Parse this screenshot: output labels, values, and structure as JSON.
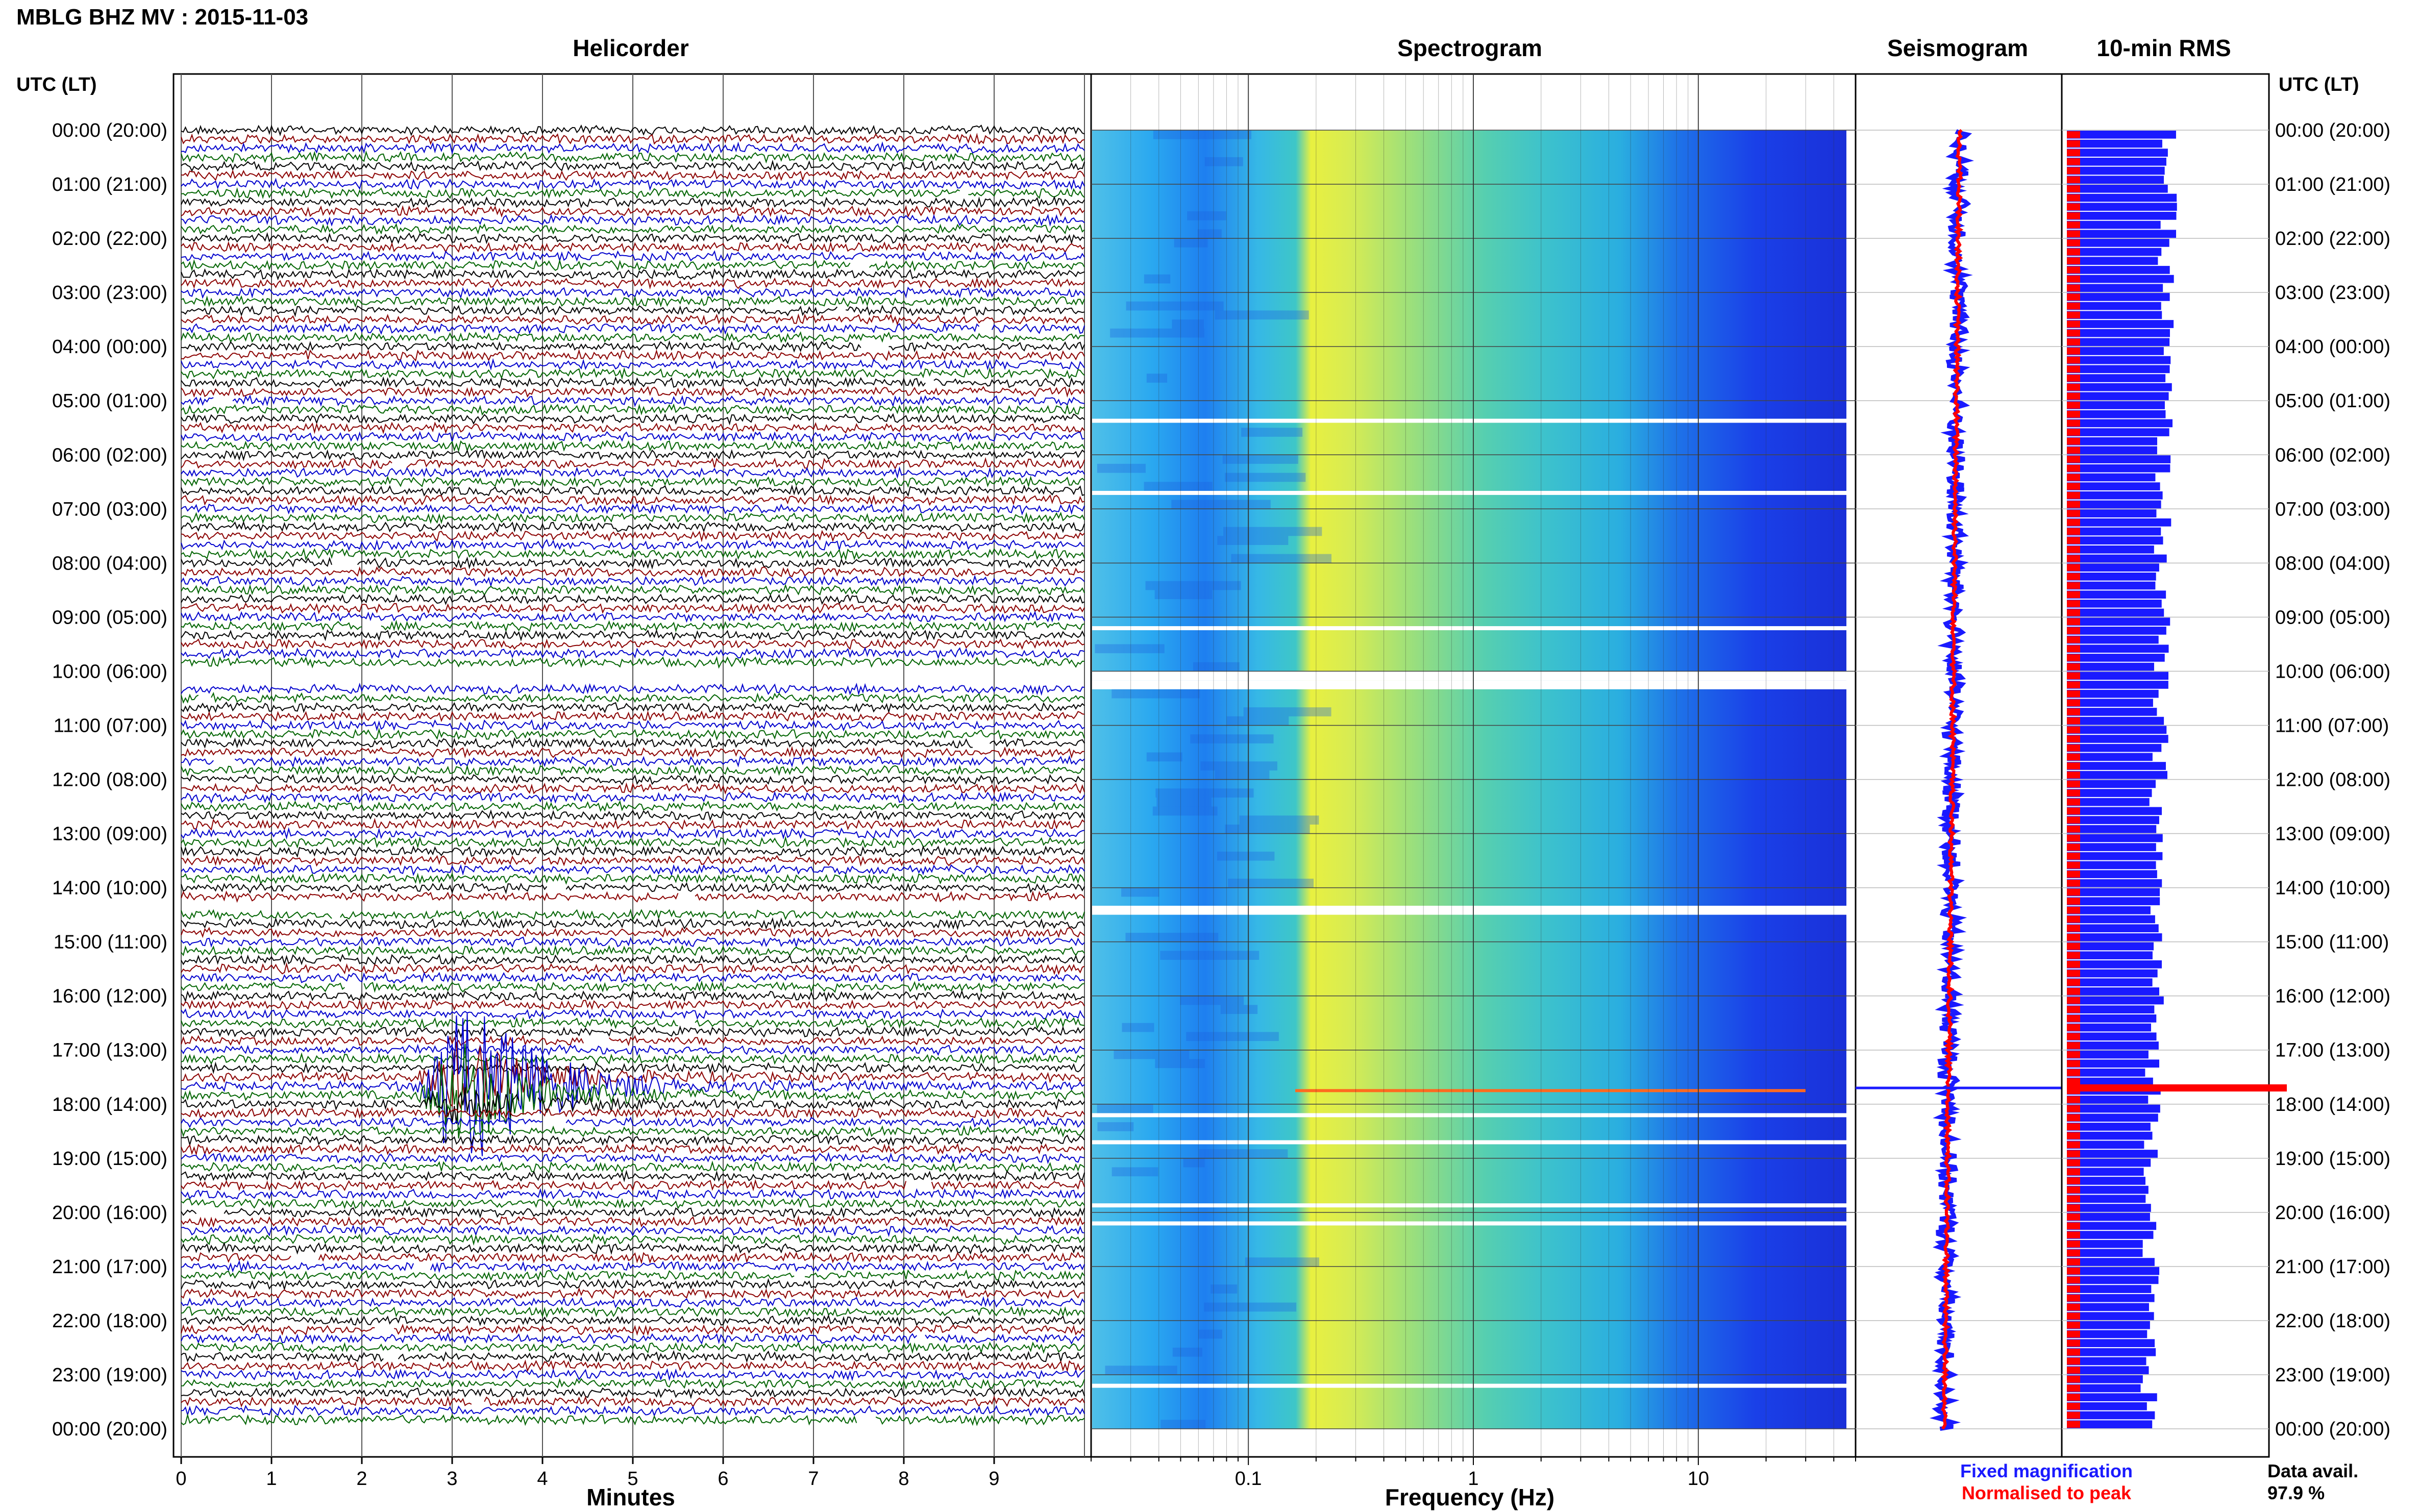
{
  "header": {
    "title": "MBLG BHZ MV : 2015-11-03",
    "utc_label_left": "UTC (LT)",
    "utc_label_right": "UTC (LT)"
  },
  "panels": {
    "helicorder": {
      "title": "Helicorder",
      "xlabel": "Minutes"
    },
    "spectrogram": {
      "title": "Spectrogram",
      "xlabel": "Frequency (Hz)"
    },
    "seismogram": {
      "title": "Seismogram"
    },
    "rms": {
      "title": "10-min RMS"
    }
  },
  "legend": {
    "fixed": "Fixed magnification",
    "normalised": "Normalised to peak",
    "fixed_color": "#1a1aff",
    "normalised_color": "#ff0000"
  },
  "data_availability": {
    "label": "Data avail.",
    "value": "97.9 %"
  },
  "chart_data": {
    "type": "helicorder",
    "time_labels": [
      "00:00 (20:00)",
      "01:00 (21:00)",
      "02:00 (22:00)",
      "03:00 (23:00)",
      "04:00 (00:00)",
      "05:00 (01:00)",
      "06:00 (02:00)",
      "07:00 (03:00)",
      "08:00 (04:00)",
      "09:00 (05:00)",
      "10:00 (06:00)",
      "11:00 (07:00)",
      "12:00 (08:00)",
      "13:00 (09:00)",
      "14:00 (10:00)",
      "15:00 (11:00)",
      "16:00 (12:00)",
      "17:00 (13:00)",
      "18:00 (14:00)",
      "19:00 (15:00)",
      "20:00 (16:00)",
      "21:00 (17:00)",
      "22:00 (18:00)",
      "23:00 (19:00)",
      "00:00 (20:00)"
    ],
    "minutes_ticks": [
      "0",
      "1",
      "2",
      "3",
      "4",
      "5",
      "6",
      "7",
      "8",
      "9"
    ],
    "minutes_range": [
      0,
      10
    ],
    "freq_ticks": [
      {
        "value": 0.1,
        "label": "0.1"
      },
      {
        "value": 1,
        "label": "1"
      },
      {
        "value": 10,
        "label": "10"
      }
    ],
    "freq_range": [
      0.02,
      50
    ],
    "trace_colors": [
      "#000000",
      "#8b0000",
      "#0000cd",
      "#006400"
    ],
    "rows_per_hour": 6,
    "event": {
      "hour": 17.7,
      "start_minute": 2.6,
      "peak_minute": 3.1
    },
    "gaps_hours": [
      10.0,
      14.2
    ],
    "rms_colors": {
      "fixed": "#1a1aff",
      "normalised": "#ff0000"
    }
  }
}
